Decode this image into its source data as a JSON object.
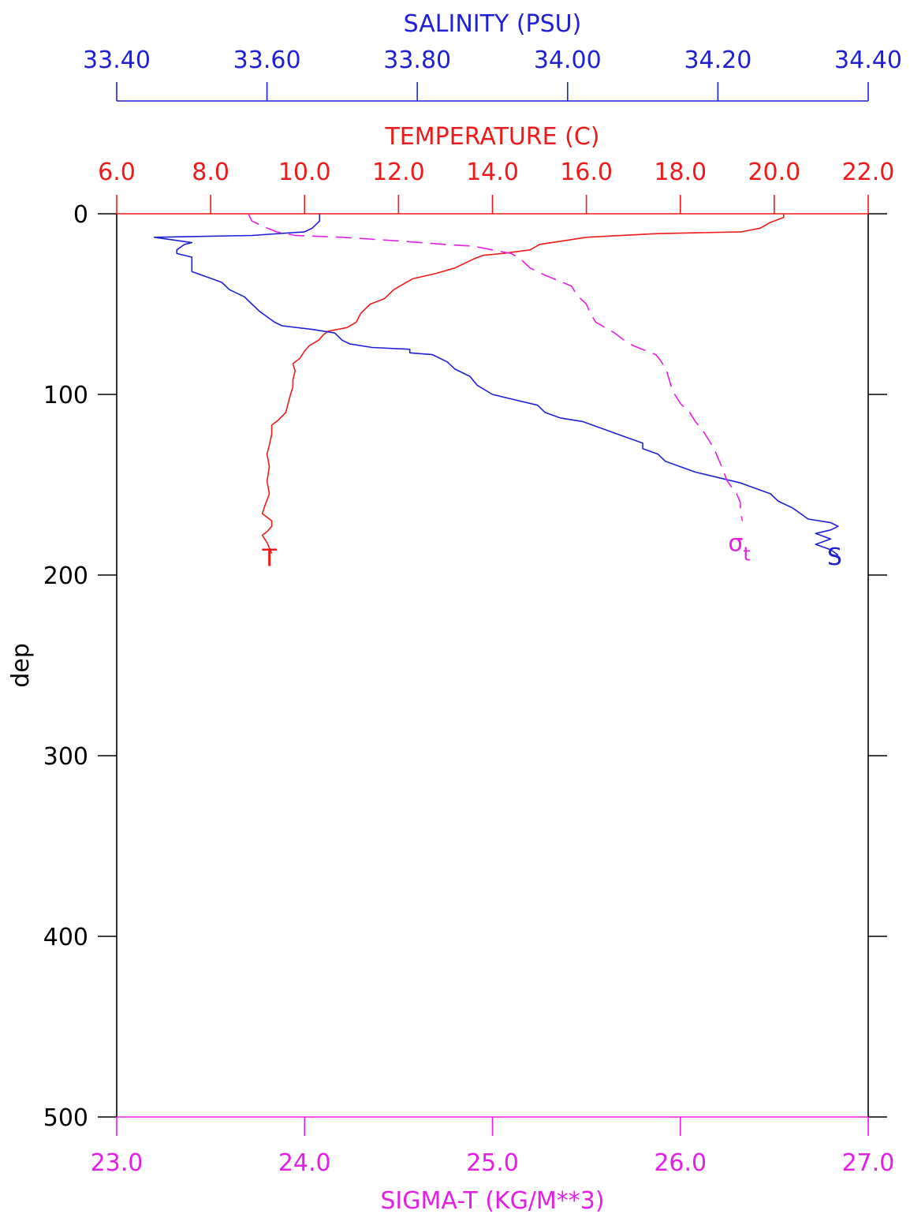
{
  "colors": {
    "salinity": "#1f1fd6",
    "temperature": "#ee1a1a",
    "sigma_t": "#e51ee5",
    "frame": "#000000"
  },
  "chart_data": {
    "type": "line",
    "orientation": "depth-profile (y axis inverted, depth increases downward)",
    "grid": false,
    "y_axis": {
      "label": "dep",
      "range": [
        0,
        500
      ],
      "inverted": true,
      "ticks": [
        0,
        100,
        200,
        300,
        400,
        500
      ],
      "tick_labels": [
        "0",
        "100",
        "200",
        "300",
        "400",
        "500"
      ]
    },
    "x_axes": [
      {
        "id": "salinity",
        "title": "SALINITY (PSU)",
        "position": "top-outer",
        "range": [
          33.4,
          34.4
        ],
        "ticks": [
          33.4,
          33.6,
          33.8,
          34.0,
          34.2,
          34.4
        ],
        "tick_labels": [
          "33.40",
          "33.60",
          "33.80",
          "34.00",
          "34.20",
          "34.40"
        ]
      },
      {
        "id": "temperature",
        "title": "TEMPERATURE (C)",
        "position": "top-inner",
        "range": [
          6.0,
          22.0
        ],
        "ticks": [
          6,
          8,
          10,
          12,
          14,
          16,
          18,
          20,
          22
        ],
        "tick_labels": [
          "6.0",
          "8.0",
          "10.0",
          "12.0",
          "14.0",
          "16.0",
          "18.0",
          "20.0",
          "22.0"
        ]
      },
      {
        "id": "sigma_t",
        "title": "SIGMA-T (KG/M**3)",
        "position": "bottom",
        "range": [
          23.0,
          27.0
        ],
        "ticks": [
          23,
          24,
          25,
          26,
          27
        ],
        "tick_labels": [
          "23.0",
          "24.0",
          "25.0",
          "26.0",
          "27.0"
        ]
      }
    ],
    "series": [
      {
        "name": "T",
        "axis": "temperature",
        "style": "solid",
        "end_label": "T",
        "points": [
          [
            20.2,
            0
          ],
          [
            20.2,
            2
          ],
          [
            19.9,
            5
          ],
          [
            19.7,
            8
          ],
          [
            19.3,
            10
          ],
          [
            17.5,
            11
          ],
          [
            16.0,
            13
          ],
          [
            15.0,
            17
          ],
          [
            14.8,
            20
          ],
          [
            14.2,
            22
          ],
          [
            13.8,
            23
          ],
          [
            13.6,
            25
          ],
          [
            13.2,
            30
          ],
          [
            12.8,
            33
          ],
          [
            12.3,
            36
          ],
          [
            11.9,
            42
          ],
          [
            11.7,
            47
          ],
          [
            11.4,
            50
          ],
          [
            11.2,
            55
          ],
          [
            11.1,
            60
          ],
          [
            10.9,
            63
          ],
          [
            10.5,
            65
          ],
          [
            10.4,
            67
          ],
          [
            10.3,
            70
          ],
          [
            10.1,
            73
          ],
          [
            10.0,
            76
          ],
          [
            9.9,
            80
          ],
          [
            9.75,
            83
          ],
          [
            9.8,
            87
          ],
          [
            9.75,
            92
          ],
          [
            9.75,
            96
          ],
          [
            9.7,
            100
          ],
          [
            9.65,
            105
          ],
          [
            9.6,
            110
          ],
          [
            9.45,
            114
          ],
          [
            9.3,
            117
          ],
          [
            9.3,
            122
          ],
          [
            9.25,
            128
          ],
          [
            9.2,
            133
          ],
          [
            9.25,
            140
          ],
          [
            9.2,
            148
          ],
          [
            9.25,
            155
          ],
          [
            9.15,
            162
          ],
          [
            9.1,
            166
          ],
          [
            9.3,
            170
          ],
          [
            9.3,
            173
          ],
          [
            9.2,
            176
          ],
          [
            9.1,
            178
          ],
          [
            9.2,
            182
          ],
          [
            9.3,
            188
          ]
        ]
      },
      {
        "name": "S",
        "axis": "salinity",
        "style": "solid",
        "end_label": "S",
        "points": [
          [
            33.67,
            0
          ],
          [
            33.67,
            4
          ],
          [
            33.66,
            8
          ],
          [
            33.65,
            10
          ],
          [
            33.58,
            12
          ],
          [
            33.45,
            13
          ],
          [
            33.5,
            16
          ],
          [
            33.49,
            17
          ],
          [
            33.48,
            20
          ],
          [
            33.48,
            22
          ],
          [
            33.5,
            24
          ],
          [
            33.5,
            27
          ],
          [
            33.5,
            32
          ],
          [
            33.52,
            35
          ],
          [
            33.54,
            38
          ],
          [
            33.55,
            42
          ],
          [
            33.57,
            46
          ],
          [
            33.58,
            50
          ],
          [
            33.59,
            54
          ],
          [
            33.6,
            57
          ],
          [
            33.61,
            60
          ],
          [
            33.62,
            62
          ],
          [
            33.66,
            64
          ],
          [
            33.69,
            66
          ],
          [
            33.7,
            70
          ],
          [
            33.71,
            72
          ],
          [
            33.74,
            74
          ],
          [
            33.79,
            75
          ],
          [
            33.79,
            77
          ],
          [
            33.82,
            78
          ],
          [
            33.84,
            82
          ],
          [
            33.85,
            86
          ],
          [
            33.87,
            90
          ],
          [
            33.88,
            95
          ],
          [
            33.9,
            100
          ],
          [
            33.93,
            103
          ],
          [
            33.96,
            106
          ],
          [
            33.97,
            110
          ],
          [
            33.99,
            113
          ],
          [
            34.02,
            115
          ],
          [
            34.04,
            118
          ],
          [
            34.06,
            121
          ],
          [
            34.08,
            124
          ],
          [
            34.1,
            127
          ],
          [
            34.1,
            130
          ],
          [
            34.12,
            133
          ],
          [
            34.13,
            137
          ],
          [
            34.15,
            140
          ],
          [
            34.17,
            143
          ],
          [
            34.2,
            146
          ],
          [
            34.23,
            149
          ],
          [
            34.25,
            152
          ],
          [
            34.27,
            155
          ],
          [
            34.28,
            159
          ],
          [
            34.3,
            163
          ],
          [
            34.31,
            166
          ],
          [
            34.32,
            169
          ],
          [
            34.35,
            171
          ],
          [
            34.36,
            173
          ],
          [
            34.35,
            175
          ],
          [
            34.33,
            177
          ],
          [
            34.35,
            180
          ],
          [
            34.33,
            183
          ],
          [
            34.35,
            186
          ],
          [
            34.36,
            189
          ]
        ]
      },
      {
        "name": "σt",
        "axis": "sigma_t",
        "style": "dashed",
        "end_label": "σt",
        "points": [
          [
            23.7,
            0
          ],
          [
            23.72,
            4
          ],
          [
            23.78,
            7
          ],
          [
            23.85,
            10
          ],
          [
            23.95,
            12
          ],
          [
            24.2,
            13
          ],
          [
            24.5,
            15
          ],
          [
            24.75,
            17
          ],
          [
            24.9,
            18
          ],
          [
            25.0,
            20
          ],
          [
            25.1,
            22
          ],
          [
            25.15,
            25
          ],
          [
            25.2,
            30
          ],
          [
            25.28,
            34
          ],
          [
            25.35,
            37
          ],
          [
            25.42,
            40
          ],
          [
            25.45,
            45
          ],
          [
            25.5,
            50
          ],
          [
            25.52,
            55
          ],
          [
            25.55,
            60
          ],
          [
            25.6,
            63
          ],
          [
            25.65,
            66
          ],
          [
            25.7,
            70
          ],
          [
            25.75,
            73
          ],
          [
            25.82,
            76
          ],
          [
            25.87,
            78
          ],
          [
            25.9,
            82
          ],
          [
            25.93,
            88
          ],
          [
            25.95,
            95
          ],
          [
            25.97,
            100
          ],
          [
            26.0,
            105
          ],
          [
            26.05,
            110
          ],
          [
            26.08,
            115
          ],
          [
            26.12,
            120
          ],
          [
            26.15,
            125
          ],
          [
            26.18,
            130
          ],
          [
            26.2,
            135
          ],
          [
            26.22,
            140
          ],
          [
            26.25,
            148
          ],
          [
            26.3,
            155
          ],
          [
            26.32,
            160
          ],
          [
            26.32,
            165
          ],
          [
            26.33,
            170
          ]
        ]
      }
    ]
  }
}
